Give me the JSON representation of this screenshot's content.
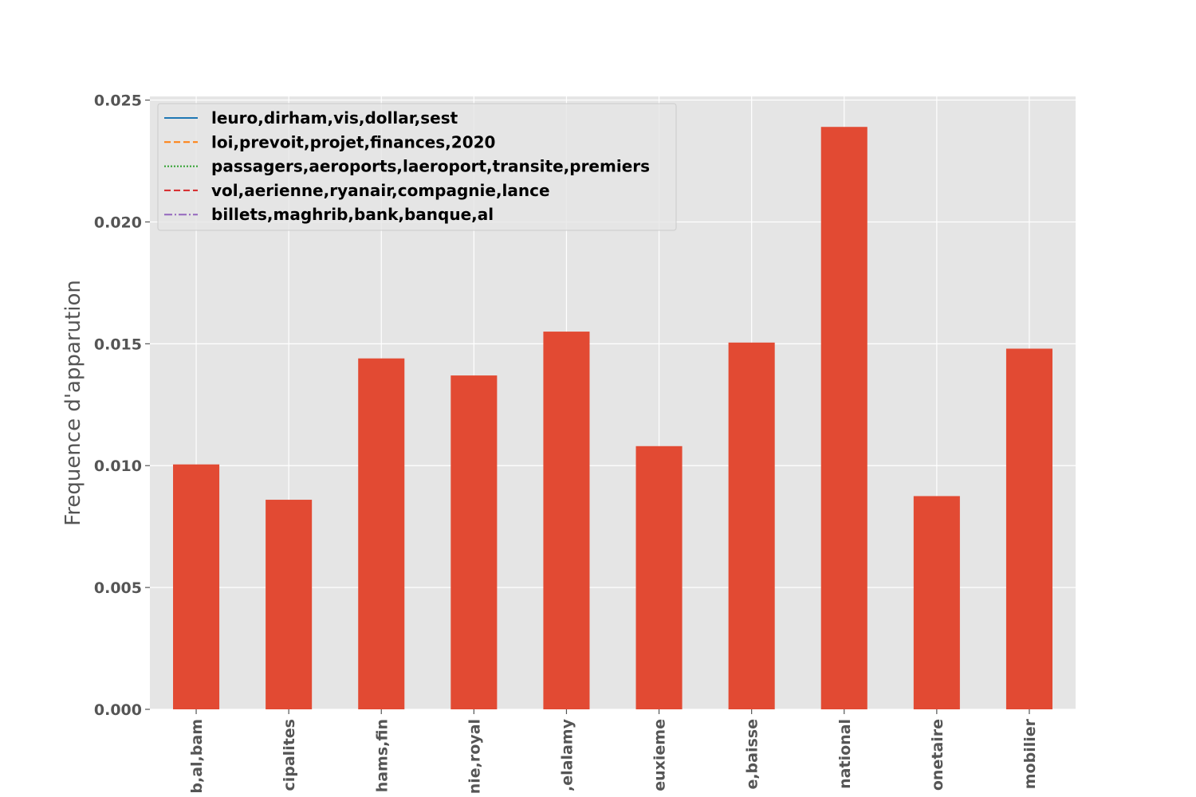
{
  "chart_data": {
    "type": "bar",
    "title": "",
    "xlabel": "",
    "ylabel": "Frequence d'apparution",
    "ylim": [
      0,
      0.025
    ],
    "yticks": [
      "0.000",
      "0.005",
      "0.010",
      "0.015",
      "0.020",
      "0.025"
    ],
    "categories": [
      "b,al,bam",
      "cipalites",
      "hams,fin",
      "nie,royal",
      ",elalamy",
      "euxieme",
      "e,baisse",
      "national",
      "onetaire",
      "mobilier"
    ],
    "values": [
      0.01005,
      0.0086,
      0.0144,
      0.0137,
      0.0155,
      0.0108,
      0.01505,
      0.0239,
      0.00875,
      0.0148
    ],
    "bar_color": "#E24A33",
    "background": "#E5E5E5",
    "grid": true,
    "legend": {
      "placement": "upper-left",
      "entries": [
        {
          "label": "leuro,dirham,vis,dollar,sest",
          "color": "#1f77b4",
          "style": "solid"
        },
        {
          "label": "loi,prevoit,projet,finances,2020",
          "color": "#ff7f0e",
          "style": "dashed"
        },
        {
          "label": "passagers,aeroports,laeroport,transite,premiers",
          "color": "#2ca02c",
          "style": "dotted"
        },
        {
          "label": "vol,aerienne,ryanair,compagnie,lance",
          "color": "#d62728",
          "style": "dashed"
        },
        {
          "label": "billets,maghrib,bank,banque,al",
          "color": "#9467bd",
          "style": "dashdot"
        }
      ]
    }
  }
}
